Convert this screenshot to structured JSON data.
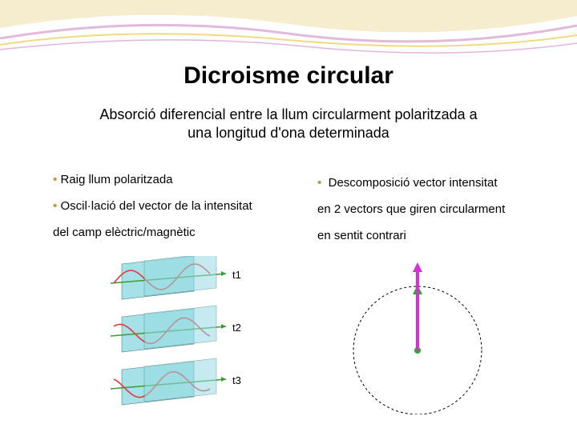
{
  "header": {
    "swirl_colors": [
      "#ffffff",
      "#f2e2b8",
      "#d183c8",
      "#e9c94a"
    ],
    "bg": "#ffffff"
  },
  "title": "Dicroisme circular",
  "subtitle_line1": "Absorció diferencial entre la llum circularment polaritzada a",
  "subtitle_line2": "una longitud d'ona determinada",
  "left": {
    "b1": "Raig llum polaritzada",
    "b2": "Oscil·lació del vector de la intensitat",
    "b3": "del camp elèctric/magnètic"
  },
  "right": {
    "b1": "Descomposició  vector  intensitat",
    "b2": "en 2 vectors que giren circularment",
    "b3": "en sentit contrari"
  },
  "bullet_color": "#c49a3a",
  "wave": {
    "labels": [
      "t1",
      "t2",
      "t3"
    ],
    "plane_fill": "#97dce4",
    "wave_color": "#e03a3a",
    "axis_color": "#3a9a33",
    "label_fontsize": 13
  },
  "circle": {
    "stroke": "#000000",
    "dash": "3,3",
    "radius": 80,
    "arrow1_color": "#d631d6",
    "arrow2_color": "#22b022",
    "dot_color": "#22b022"
  }
}
